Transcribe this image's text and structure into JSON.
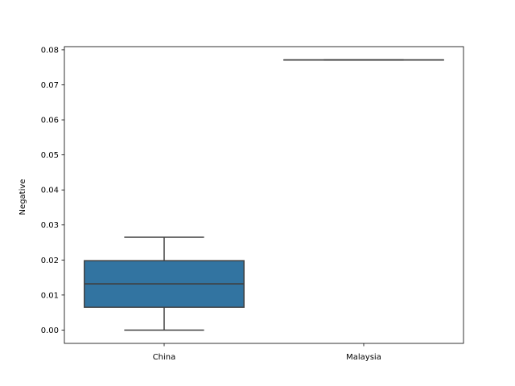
{
  "chart_data": {
    "type": "box",
    "title": "",
    "xlabel": "",
    "ylabel": "Negative",
    "categories": [
      "China",
      "Malaysia"
    ],
    "boxes": [
      {
        "category": "China",
        "whisker_low": 0.0,
        "q1": 0.0065,
        "median": 0.0132,
        "q3": 0.0198,
        "whisker_high": 0.0265
      },
      {
        "category": "Malaysia",
        "whisker_low": 0.0771,
        "q1": 0.0771,
        "median": 0.0771,
        "q3": 0.0771,
        "whisker_high": 0.0771
      }
    ],
    "ylim": [
      -0.0038,
      0.0809
    ],
    "yticks": [
      0.0,
      0.01,
      0.02,
      0.03,
      0.04,
      0.05,
      0.06,
      0.07,
      0.08
    ],
    "ytick_labels": [
      "0.00",
      "0.01",
      "0.02",
      "0.03",
      "0.04",
      "0.05",
      "0.06",
      "0.07",
      "0.08"
    ],
    "grid": false,
    "colors": {
      "box_fill": "#3274a1",
      "line": "#3f3f3f",
      "axis": "#000000"
    }
  }
}
